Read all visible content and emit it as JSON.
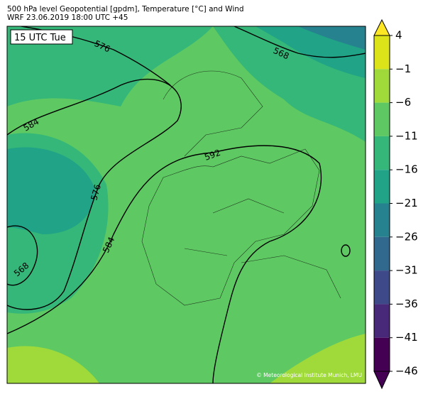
{
  "header": {
    "line1": "500 hPa level Geopotential [gpdm], Temperature [°C] and Wind",
    "line2": "WRF 23.06.2019 18:00 UTC +45"
  },
  "map": {
    "time_label": "15 UTC Tue",
    "contour_labels": [
      "576",
      "568",
      "584",
      "592",
      "576",
      "584",
      "568"
    ],
    "credit": "© Meteorological Institute Munich, LMU"
  },
  "colorbar": {
    "ticks": [
      "4",
      "−1",
      "−6",
      "−11",
      "−16",
      "−21",
      "−26",
      "−31",
      "−36",
      "−41",
      "−46"
    ],
    "colors": [
      "#fde725",
      "#dce319",
      "#9fda3a",
      "#5ec962",
      "#35b779",
      "#20a386",
      "#26828e",
      "#31688e",
      "#3e4989",
      "#482878",
      "#440154"
    ]
  }
}
